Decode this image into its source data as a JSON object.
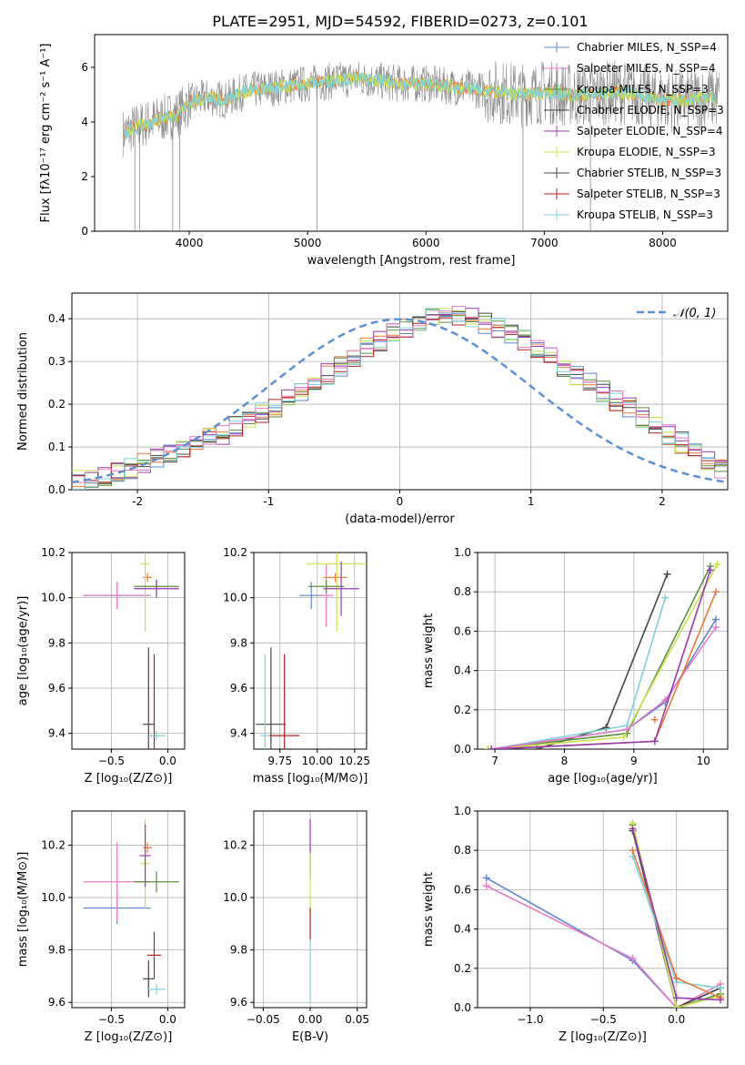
{
  "figure_title": "PLATE=2951, MJD=54592, FIBERID=0273, z=0.101",
  "colors": {
    "chabrier_miles": "#5b86d6",
    "salpeter_miles": "#e9793a",
    "kroupa_miles": "#f07f2d",
    "chabrier_elodie": "#5c8f3f",
    "salpeter_elodie": "#9b38b0",
    "kroupa_elodie": "#c9e34a",
    "chabrier_stelib": "#444444",
    "salpeter_stelib": "#b22222",
    "kroupa_stelib": "#7fd3d8",
    "pink": "#e87bc6",
    "gaussian": "#5b8fd6",
    "grid": "#b0b0b0"
  },
  "chart_data": [
    {
      "id": "spectrum",
      "type": "line",
      "xlabel": "wavelength [Angstrom, rest frame]",
      "ylabel": "Flux [fλ10⁻¹⁷ erg cm⁻² s⁻¹ A⁻¹]",
      "xlim": [
        3200,
        8550
      ],
      "ylim": [
        0,
        7.2
      ],
      "xticks": [
        4000,
        5000,
        6000,
        7000,
        8000
      ],
      "yticks": [
        0,
        2,
        4,
        6
      ],
      "grid": false,
      "legend_position": "upper-right",
      "legend": [
        {
          "label": "Chabrier MILES, N_SSP=4",
          "color": "#5b86d6"
        },
        {
          "label": "Salpeter MILES, N_SSP=4",
          "color": "#e87bc6"
        },
        {
          "label": "Kroupa MILES, N_SSP=3",
          "color": "#5c8f3f"
        },
        {
          "label": "Chabrier ELODIE, N_SSP=3",
          "color": "#444444"
        },
        {
          "label": "Salpeter ELODIE, N_SSP=4",
          "color": "#9b38b0"
        },
        {
          "label": "Kroupa ELODIE, N_SSP=3",
          "color": "#c9e34a"
        },
        {
          "label": "Chabrier STELIB, N_SSP=3",
          "color": "#444444"
        },
        {
          "label": "Salpeter STELIB, N_SSP=3",
          "color": "#b22222"
        },
        {
          "label": "Kroupa STELIB, N_SSP=3",
          "color": "#7fd3d8"
        }
      ],
      "data_x": [
        3450,
        3600,
        3750,
        3900,
        4000,
        4150,
        4300,
        4450,
        4600,
        4800,
        5000,
        5200,
        5400,
        5600,
        5800,
        6000,
        6200,
        6400,
        6600,
        6800,
        7000,
        7200,
        7400,
        7600,
        7800,
        8000,
        8200,
        8400
      ],
      "data_y": [
        3.6,
        3.9,
        4.1,
        4.3,
        4.7,
        4.9,
        4.8,
        5.1,
        5.2,
        5.3,
        5.4,
        5.5,
        5.6,
        5.5,
        5.4,
        5.4,
        5.3,
        5.2,
        5.1,
        5.0,
        5.1,
        5.0,
        5.0,
        5.1,
        5.0,
        4.8,
        4.8,
        4.9
      ]
    },
    {
      "id": "residuals",
      "type": "histogram",
      "xlabel": "(data-model)/error",
      "ylabel": "Normed distribution",
      "xlim": [
        -2.5,
        2.5
      ],
      "ylim": [
        0,
        0.46
      ],
      "xticks": [
        -2,
        -1,
        0,
        1,
        2
      ],
      "yticks": [
        0.0,
        0.1,
        0.2,
        0.3,
        0.4
      ],
      "grid": true,
      "legend_position": "upper-right",
      "legend": [
        {
          "label": "𝒩(0, 1)",
          "color": "#5b8fd6",
          "style": "dashed"
        }
      ],
      "bin_edges_start": -2.5,
      "bin_width": 0.1,
      "bin_values": [
        0.02,
        0.025,
        0.03,
        0.04,
        0.05,
        0.06,
        0.07,
        0.08,
        0.09,
        0.11,
        0.12,
        0.13,
        0.15,
        0.16,
        0.18,
        0.19,
        0.21,
        0.23,
        0.25,
        0.27,
        0.29,
        0.31,
        0.33,
        0.35,
        0.37,
        0.38,
        0.39,
        0.4,
        0.4,
        0.41,
        0.4,
        0.39,
        0.38,
        0.36,
        0.35,
        0.33,
        0.31,
        0.29,
        0.27,
        0.25,
        0.23,
        0.21,
        0.19,
        0.17,
        0.15,
        0.13,
        0.11,
        0.09,
        0.07,
        0.05
      ]
    },
    {
      "id": "age_vs_Z",
      "type": "errorbar",
      "xlabel": "Z [log₁₀(Z/Z⊙)]",
      "ylabel": "age  [log₁₀(age/yr)]",
      "xlim": [
        -0.85,
        0.15
      ],
      "ylim": [
        9.33,
        10.2
      ],
      "xticks": [
        -0.5,
        0.0
      ],
      "xticklabels": [
        "−0.5",
        "0.0"
      ],
      "yticks": [
        9.4,
        9.6,
        9.8,
        10.0,
        10.2
      ],
      "points": [
        {
          "x": -0.45,
          "y": 10.01,
          "xerr": 0.3,
          "yerr": 0.06,
          "color": "#5b86d6"
        },
        {
          "x": -0.45,
          "y": 10.01,
          "xerr": 0.3,
          "yerr": 0.06,
          "color": "#e87bc6"
        },
        {
          "x": -0.18,
          "y": 10.09,
          "xerr": 0.04,
          "yerr": 0.02,
          "color": "#e9793a"
        },
        {
          "x": -0.2,
          "y": 10.15,
          "xerr": 0.04,
          "yerr": 0.3,
          "color": "#c9e34a"
        },
        {
          "x": -0.1,
          "y": 10.05,
          "xerr": 0.2,
          "yerr": 0.03,
          "color": "#5c8f3f"
        },
        {
          "x": -0.1,
          "y": 10.04,
          "xerr": 0.2,
          "yerr": 0.04,
          "color": "#9b38b0"
        },
        {
          "x": -0.17,
          "y": 9.44,
          "xerr": 0.05,
          "yerr": 0.34,
          "color": "#444444"
        },
        {
          "x": -0.12,
          "y": 9.39,
          "xerr": 0.06,
          "yerr": 0.36,
          "color": "#b22222"
        },
        {
          "x": -0.1,
          "y": 9.39,
          "xerr": 0.08,
          "yerr": 0.02,
          "color": "#7fd3d8"
        }
      ]
    },
    {
      "id": "age_vs_mass",
      "type": "errorbar",
      "xlabel": "mass [log₁₀(M/M⊙)]",
      "ylabel": "",
      "xlim": [
        9.575,
        10.33
      ],
      "ylim": [
        9.33,
        10.2
      ],
      "xticks": [
        9.75,
        10.0,
        10.25
      ],
      "xticklabels": [
        "9.75",
        "10.00",
        "10.25"
      ],
      "yticks": [
        9.4,
        9.6,
        9.8,
        10.0,
        10.2
      ],
      "points": [
        {
          "x": 9.96,
          "y": 10.01,
          "xerr": 0.08,
          "yerr": 0.06,
          "color": "#5b86d6"
        },
        {
          "x": 10.06,
          "y": 10.01,
          "xerr": 0.05,
          "yerr": 0.14,
          "color": "#e87bc6"
        },
        {
          "x": 10.12,
          "y": 10.09,
          "xerr": 0.08,
          "yerr": 0.02,
          "color": "#e9793a"
        },
        {
          "x": 10.13,
          "y": 10.15,
          "xerr": 0.2,
          "yerr": 0.3,
          "color": "#c9e34a"
        },
        {
          "x": 10.06,
          "y": 10.05,
          "xerr": 0.12,
          "yerr": 0.03,
          "color": "#5c8f3f"
        },
        {
          "x": 10.16,
          "y": 10.04,
          "xerr": 0.12,
          "yerr": 0.12,
          "color": "#9b38b0"
        },
        {
          "x": 9.69,
          "y": 9.44,
          "xerr": 0.1,
          "yerr": 0.34,
          "color": "#444444"
        },
        {
          "x": 9.78,
          "y": 9.39,
          "xerr": 0.1,
          "yerr": 0.36,
          "color": "#b22222"
        },
        {
          "x": 9.65,
          "y": 9.39,
          "xerr": 0.03,
          "yerr": 0.36,
          "color": "#7fd3d8"
        }
      ]
    },
    {
      "id": "massweight_vs_age",
      "type": "line",
      "xlabel": "age  [log₁₀(age/yr)]",
      "ylabel": "mass weight",
      "xlim": [
        6.75,
        10.35
      ],
      "ylim": [
        0,
        1.0
      ],
      "xticks": [
        7,
        8,
        9,
        10
      ],
      "yticks": [
        0.0,
        0.2,
        0.4,
        0.6,
        0.8,
        1.0
      ],
      "series_points": [
        {
          "color": "#444444",
          "x": [
            7.6,
            8.6,
            9.48
          ],
          "y": [
            0.0,
            0.11,
            0.89
          ]
        },
        {
          "color": "#5c8f3f",
          "x": [
            6.9,
            8.9,
            10.1
          ],
          "y": [
            0.0,
            0.08,
            0.93
          ]
        },
        {
          "color": "#c9e34a",
          "x": [
            6.9,
            8.85,
            10.2
          ],
          "y": [
            0.0,
            0.06,
            0.94
          ]
        },
        {
          "color": "#7fd3d8",
          "x": [
            6.95,
            8.9,
            9.45
          ],
          "y": [
            0.0,
            0.12,
            0.77
          ]
        },
        {
          "color": "#5b86d6",
          "x": [
            6.95,
            8.9,
            9.45,
            10.18
          ],
          "y": [
            0.0,
            0.1,
            0.24,
            0.66
          ]
        },
        {
          "color": "#e87bc6",
          "x": [
            6.95,
            8.9,
            9.45,
            10.18
          ],
          "y": [
            0.0,
            0.1,
            0.25,
            0.62
          ]
        },
        {
          "color": "#e9793a",
          "x": [
            6.95,
            9.3,
            10.18
          ],
          "y": [
            0.0,
            0.04,
            0.8
          ]
        },
        {
          "color": "#9b38b0",
          "x": [
            6.95,
            9.3,
            10.1
          ],
          "y": [
            0.0,
            0.04,
            0.91
          ]
        },
        {
          "color": "#e9793a",
          "x": [
            9.3
          ],
          "y": [
            0.15
          ]
        }
      ]
    },
    {
      "id": "mass_vs_Z",
      "type": "errorbar",
      "xlabel": "Z [log₁₀(Z/Z⊙)]",
      "ylabel": "mass [log₁₀(M/M⊙)]",
      "xlim": [
        -0.85,
        0.15
      ],
      "ylim": [
        9.58,
        10.33
      ],
      "xticks": [
        -0.5,
        0.0
      ],
      "xticklabels": [
        "−0.5",
        "0.0"
      ],
      "yticks": [
        9.6,
        9.8,
        10.0,
        10.2
      ],
      "points": [
        {
          "x": -0.45,
          "y": 9.96,
          "xerr": 0.3,
          "yerr": 0.06,
          "color": "#5b86d6"
        },
        {
          "x": -0.45,
          "y": 10.06,
          "xerr": 0.3,
          "yerr": 0.15,
          "color": "#e87bc6"
        },
        {
          "x": -0.18,
          "y": 10.19,
          "xerr": 0.04,
          "yerr": 0.02,
          "color": "#e9793a"
        },
        {
          "x": -0.2,
          "y": 10.13,
          "xerr": 0.04,
          "yerr": 0.17,
          "color": "#c9e34a"
        },
        {
          "x": -0.1,
          "y": 10.06,
          "xerr": 0.2,
          "yerr": 0.04,
          "color": "#5c8f3f"
        },
        {
          "x": -0.2,
          "y": 10.16,
          "xerr": 0.05,
          "yerr": 0.12,
          "color": "#9b38b0"
        },
        {
          "x": -0.17,
          "y": 9.69,
          "xerr": 0.05,
          "yerr": 0.07,
          "color": "#444444"
        },
        {
          "x": -0.12,
          "y": 9.78,
          "xerr": 0.06,
          "yerr": 0.09,
          "color": "#b22222"
        },
        {
          "x": -0.1,
          "y": 9.65,
          "xerr": 0.08,
          "yerr": 0.02,
          "color": "#7fd3d8"
        }
      ]
    },
    {
      "id": "mass_vs_ebv",
      "type": "errorbar",
      "xlabel": "E(B-V)",
      "ylabel": "",
      "xlim": [
        -0.06,
        0.06
      ],
      "ylim": [
        9.58,
        10.33
      ],
      "xticks": [
        -0.05,
        0.0,
        0.05
      ],
      "xticklabels": [
        "−0.05",
        "0.00",
        "0.05"
      ],
      "yticks": [
        9.6,
        9.8,
        10.0,
        10.2
      ],
      "points": [
        {
          "x": 0.0,
          "y": 10.19,
          "xerr": 0,
          "yerr": 0.11,
          "color": "#9b38b0"
        },
        {
          "x": 0.0,
          "y": 10.05,
          "xerr": 0,
          "yerr": 0.12,
          "color": "#c9e34a"
        },
        {
          "x": 0.0,
          "y": 9.9,
          "xerr": 0,
          "yerr": 0.06,
          "color": "#b22222"
        },
        {
          "x": 0.0,
          "y": 9.72,
          "xerr": 0,
          "yerr": 0.12,
          "color": "#7fd3d8"
        }
      ]
    },
    {
      "id": "massweight_vs_Z",
      "type": "line",
      "xlabel": "Z [log₁₀(Z/Z⊙)]",
      "ylabel": "mass weight",
      "xlim": [
        -1.36,
        0.35
      ],
      "ylim": [
        0,
        1.0
      ],
      "xticks": [
        -1.0,
        -0.5,
        0.0
      ],
      "xticklabels": [
        "−1.0",
        "−0.5",
        "0.0"
      ],
      "yticks": [
        0.0,
        0.2,
        0.4,
        0.6,
        0.8,
        1.0
      ],
      "series_points": [
        {
          "color": "#5b86d6",
          "x": [
            -1.3,
            -0.3,
            0.0,
            0.3
          ],
          "y": [
            0.66,
            0.24,
            0.0,
            0.1
          ]
        },
        {
          "color": "#e87bc6",
          "x": [
            -1.3,
            -0.3,
            0.0,
            0.3
          ],
          "y": [
            0.62,
            0.25,
            0.0,
            0.12
          ]
        },
        {
          "color": "#444444",
          "x": [
            -0.3,
            0.0,
            0.3
          ],
          "y": [
            0.9,
            0.0,
            0.1
          ]
        },
        {
          "color": "#5c8f3f",
          "x": [
            -0.3,
            0.0,
            0.3
          ],
          "y": [
            0.93,
            0.0,
            0.07
          ]
        },
        {
          "color": "#c9e34a",
          "x": [
            -0.3,
            0.0,
            0.3
          ],
          "y": [
            0.94,
            0.0,
            0.06
          ]
        },
        {
          "color": "#7fd3d8",
          "x": [
            -0.3,
            0.0,
            0.3
          ],
          "y": [
            0.77,
            0.13,
            0.1
          ]
        },
        {
          "color": "#e9793a",
          "x": [
            -0.3,
            0.0,
            0.3
          ],
          "y": [
            0.8,
            0.15,
            0.05
          ]
        },
        {
          "color": "#9b38b0",
          "x": [
            -0.3,
            0.0,
            0.3
          ],
          "y": [
            0.91,
            0.05,
            0.04
          ]
        }
      ]
    }
  ]
}
